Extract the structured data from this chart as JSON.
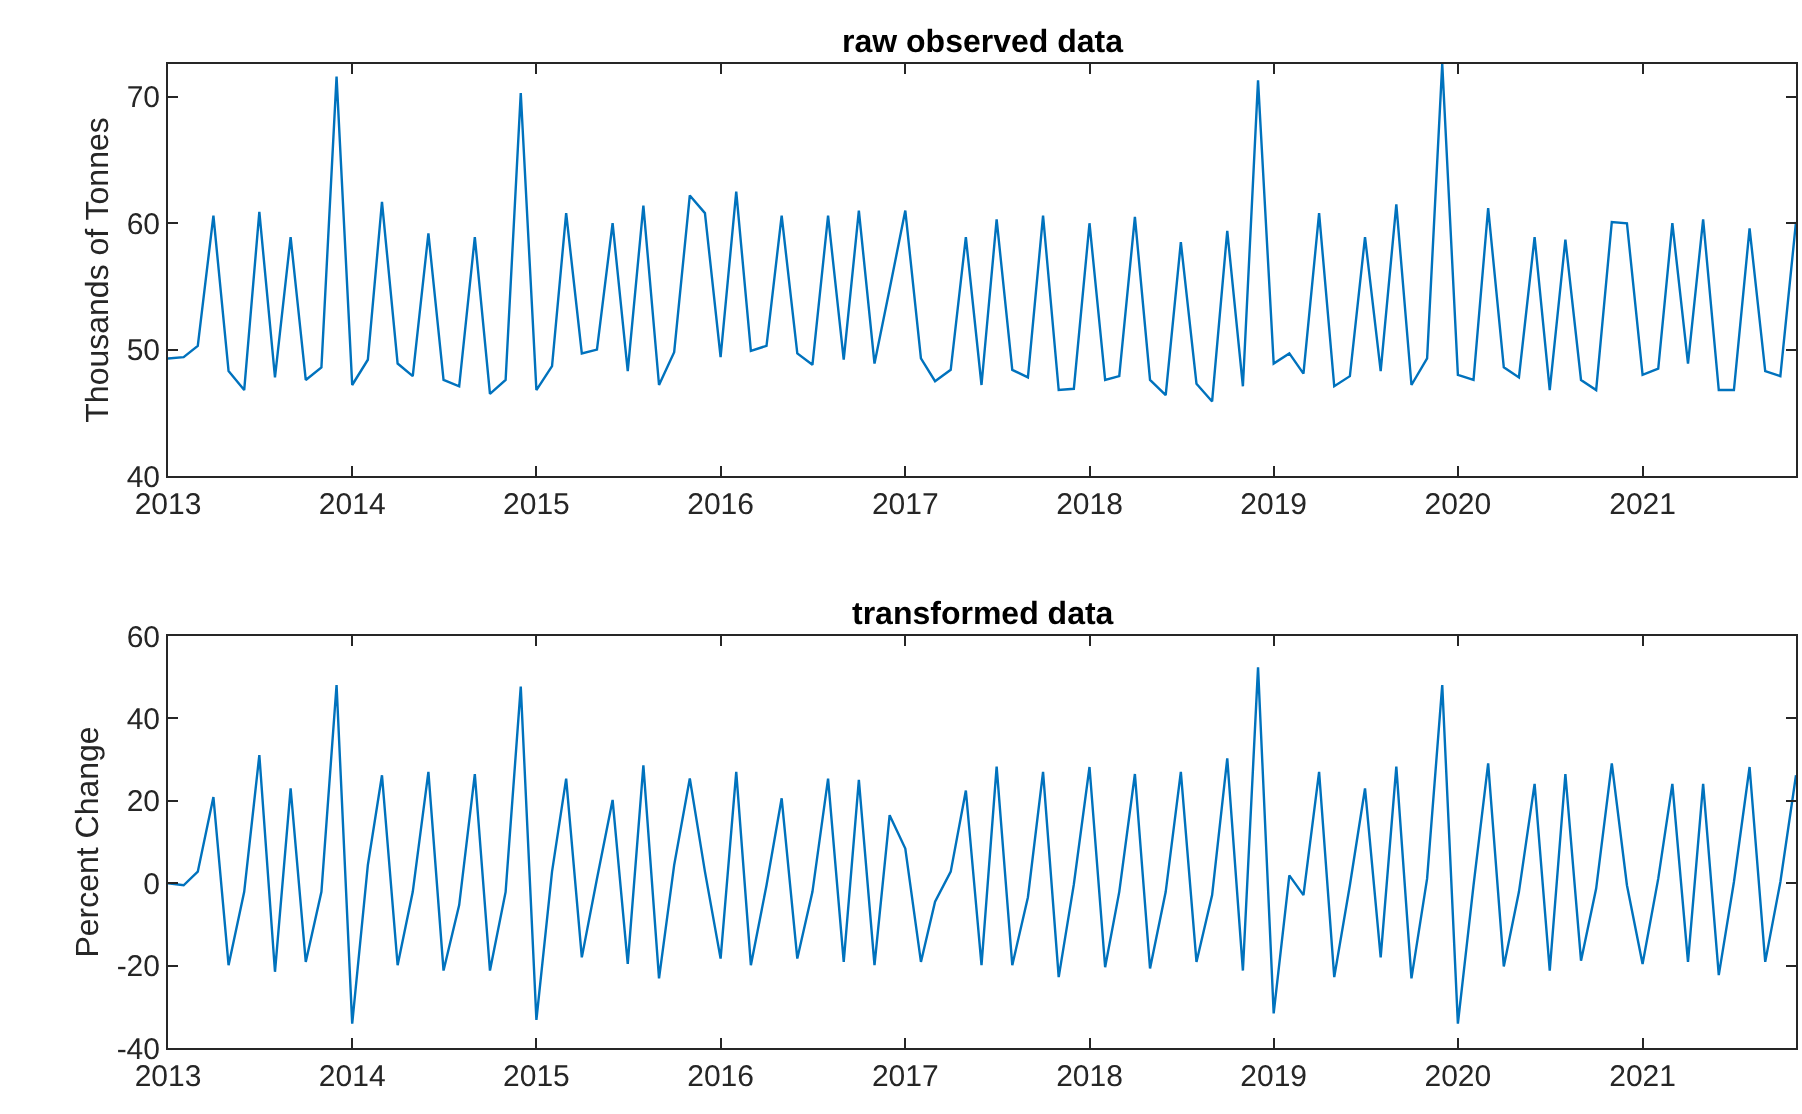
{
  "chart_data": [
    {
      "type": "line",
      "title": "raw observed data",
      "ylabel": "Thousands of Tonnes",
      "x": [
        "2013-01",
        "2013-02",
        "2013-03",
        "2013-04",
        "2013-05",
        "2013-06",
        "2013-07",
        "2013-08",
        "2013-09",
        "2013-10",
        "2013-11",
        "2013-12",
        "2014-01",
        "2014-02",
        "2014-03",
        "2014-04",
        "2014-05",
        "2014-06",
        "2014-07",
        "2014-08",
        "2014-09",
        "2014-10",
        "2014-11",
        "2014-12",
        "2015-01",
        "2015-02",
        "2015-03",
        "2015-04",
        "2015-05",
        "2015-06",
        "2015-07",
        "2015-08",
        "2015-09",
        "2015-10",
        "2015-11",
        "2015-12",
        "2016-01",
        "2016-02",
        "2016-03",
        "2016-04",
        "2016-05",
        "2016-06",
        "2016-07",
        "2016-08",
        "2016-09",
        "2016-10",
        "2016-11",
        "2016-12",
        "2017-01",
        "2017-02",
        "2017-03",
        "2017-04",
        "2017-05",
        "2017-06",
        "2017-07",
        "2017-08",
        "2017-09",
        "2017-10",
        "2017-11",
        "2017-12",
        "2018-01",
        "2018-02",
        "2018-03",
        "2018-04",
        "2018-05",
        "2018-06",
        "2018-07",
        "2018-08",
        "2018-09",
        "2018-10",
        "2018-11",
        "2018-12",
        "2019-01",
        "2019-02",
        "2019-03",
        "2019-04",
        "2019-05",
        "2019-06",
        "2019-07",
        "2019-08",
        "2019-09",
        "2019-10",
        "2019-11",
        "2019-12",
        "2020-01",
        "2020-02",
        "2020-03",
        "2020-04",
        "2020-05",
        "2020-06",
        "2020-07",
        "2020-08",
        "2020-09",
        "2020-10",
        "2020-11",
        "2020-12",
        "2021-01",
        "2021-02",
        "2021-03",
        "2021-04",
        "2021-05",
        "2021-06",
        "2021-07",
        "2021-08",
        "2021-09",
        "2021-10",
        "2021-11"
      ],
      "series": [
        {
          "color": "#0072bd",
          "values": [
            49.3,
            49.4,
            50.3,
            60.6,
            48.3,
            46.8,
            60.9,
            47.8,
            58.9,
            47.6,
            48.6,
            71.6,
            47.2,
            49.2,
            61.7,
            48.9,
            47.9,
            59.2,
            47.6,
            47.1,
            58.9,
            46.5,
            47.6,
            70.3,
            46.8,
            48.7,
            60.8,
            49.7,
            50.0,
            60.0,
            48.3,
            61.4,
            47.2,
            49.8,
            62.2,
            60.8,
            49.4,
            62.5,
            49.9,
            50.3,
            60.6,
            49.7,
            48.8,
            60.6,
            49.2,
            61.0,
            48.9,
            54.8,
            61.0,
            49.3,
            47.5,
            48.4,
            58.9,
            47.2,
            60.3,
            48.4,
            47.8,
            60.6,
            46.8,
            46.9,
            60.0,
            47.6,
            47.9,
            60.5,
            47.6,
            46.4,
            58.5,
            47.3,
            45.9,
            59.4,
            47.1,
            71.3,
            48.9,
            49.7,
            48.1,
            60.8,
            47.1,
            47.9,
            58.9,
            48.3,
            61.5,
            47.2,
            49.3,
            72.6,
            48.0,
            47.6,
            61.2,
            48.6,
            47.8,
            58.9,
            46.8,
            58.7,
            47.6,
            46.8,
            60.1,
            60.0,
            48.0,
            48.5,
            60.0,
            48.9,
            60.3,
            46.8,
            46.8,
            59.6,
            48.3,
            47.9,
            60.1
          ]
        }
      ],
      "xlim": [
        "2013-01",
        "2021-11"
      ],
      "ylim": [
        40,
        72.6
      ],
      "xticks": [
        {
          "value": "2013-01",
          "label": "2013"
        },
        {
          "value": "2014-01",
          "label": "2014"
        },
        {
          "value": "2015-01",
          "label": "2015"
        },
        {
          "value": "2016-01",
          "label": "2016"
        },
        {
          "value": "2017-01",
          "label": "2017"
        },
        {
          "value": "2018-01",
          "label": "2018"
        },
        {
          "value": "2019-01",
          "label": "2019"
        },
        {
          "value": "2020-01",
          "label": "2020"
        },
        {
          "value": "2021-01",
          "label": "2021"
        }
      ],
      "yticks": [
        40,
        50,
        60,
        70
      ]
    },
    {
      "type": "line",
      "title": "transformed data",
      "ylabel": "Percent Change",
      "x": [
        "2013-01",
        "2013-02",
        "2013-03",
        "2013-04",
        "2013-05",
        "2013-06",
        "2013-07",
        "2013-08",
        "2013-09",
        "2013-10",
        "2013-11",
        "2013-12",
        "2014-01",
        "2014-02",
        "2014-03",
        "2014-04",
        "2014-05",
        "2014-06",
        "2014-07",
        "2014-08",
        "2014-09",
        "2014-10",
        "2014-11",
        "2014-12",
        "2015-01",
        "2015-02",
        "2015-03",
        "2015-04",
        "2015-05",
        "2015-06",
        "2015-07",
        "2015-08",
        "2015-09",
        "2015-10",
        "2015-11",
        "2015-12",
        "2016-01",
        "2016-02",
        "2016-03",
        "2016-04",
        "2016-05",
        "2016-06",
        "2016-07",
        "2016-08",
        "2016-09",
        "2016-10",
        "2016-11",
        "2016-12",
        "2017-01",
        "2017-02",
        "2017-03",
        "2017-04",
        "2017-05",
        "2017-06",
        "2017-07",
        "2017-08",
        "2017-09",
        "2017-10",
        "2017-11",
        "2017-12",
        "2018-01",
        "2018-02",
        "2018-03",
        "2018-04",
        "2018-05",
        "2018-06",
        "2018-07",
        "2018-08",
        "2018-09",
        "2018-10",
        "2018-11",
        "2018-12",
        "2019-01",
        "2019-02",
        "2019-03",
        "2019-04",
        "2019-05",
        "2019-06",
        "2019-07",
        "2019-08",
        "2019-09",
        "2019-10",
        "2019-11",
        "2019-12",
        "2020-01",
        "2020-02",
        "2020-03",
        "2020-04",
        "2020-05",
        "2020-06",
        "2020-07",
        "2020-08",
        "2020-09",
        "2020-10",
        "2020-11",
        "2020-12",
        "2021-01",
        "2021-02",
        "2021-03",
        "2021-04",
        "2021-05",
        "2021-06",
        "2021-07",
        "2021-08",
        "2021-09",
        "2021-10",
        "2021-11"
      ],
      "series": [
        {
          "color": "#0072bd",
          "values": [
            0,
            -0.5,
            2.8,
            20.9,
            -19.9,
            -2.1,
            31.1,
            -21.5,
            23.0,
            -19.1,
            -2.1,
            48.1,
            -34.1,
            4.4,
            26.2,
            -19.9,
            -2.1,
            27.0,
            -21.2,
            -5.3,
            26.5,
            -21.2,
            -2.1,
            47.7,
            -33.2,
            2.8,
            25.4,
            -18.0,
            1.1,
            20.2,
            -19.6,
            28.6,
            -23.1,
            4.4,
            25.4,
            2.8,
            -18.3,
            27.0,
            -19.9,
            -0.5,
            20.6,
            -18.3,
            -2.1,
            25.4,
            -19.1,
            25.1,
            -19.9,
            16.5,
            8.4,
            -19.1,
            -4.5,
            2.8,
            22.5,
            -19.9,
            28.3,
            -19.9,
            -3.4,
            27.0,
            -22.8,
            -0.3,
            28.2,
            -20.4,
            -2.1,
            26.5,
            -20.7,
            -2.1,
            27.0,
            -19.1,
            -2.9,
            30.3,
            -21.2,
            52.4,
            -31.6,
            1.9,
            -2.9,
            27.0,
            -22.8,
            -0.5,
            23.0,
            -18.0,
            28.3,
            -23.1,
            1.1,
            48.1,
            -34.1,
            -0.5,
            29.1,
            -20.2,
            -2.1,
            24.1,
            -21.2,
            26.5,
            -18.8,
            -1.3,
            29.1,
            -0.5,
            -19.6,
            1.1,
            24.1,
            -19.1,
            24.1,
            -22.3,
            0.3,
            28.2,
            -19.1,
            0.3,
            26.2
          ]
        }
      ],
      "xlim": [
        "2013-01",
        "2021-11"
      ],
      "ylim": [
        -40,
        60
      ],
      "xticks": [
        {
          "value": "2013-01",
          "label": "2013"
        },
        {
          "value": "2014-01",
          "label": "2014"
        },
        {
          "value": "2015-01",
          "label": "2015"
        },
        {
          "value": "2016-01",
          "label": "2016"
        },
        {
          "value": "2017-01",
          "label": "2017"
        },
        {
          "value": "2018-01",
          "label": "2018"
        },
        {
          "value": "2019-01",
          "label": "2019"
        },
        {
          "value": "2020-01",
          "label": "2020"
        },
        {
          "value": "2021-01",
          "label": "2021"
        }
      ],
      "yticks": [
        -40,
        -20,
        0,
        20,
        40,
        60
      ]
    }
  ]
}
